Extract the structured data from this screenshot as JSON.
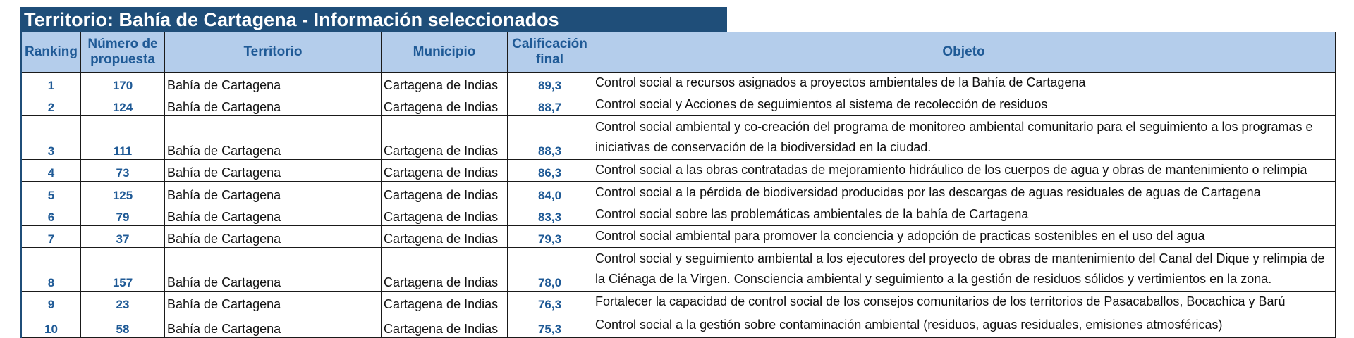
{
  "title": "Territorio: Bahía de Cartagena - Información seleccionados",
  "columns": {
    "ranking": "Ranking",
    "numero": "Número de propuesta",
    "territorio": "Territorio",
    "municipio": "Municipio",
    "calificacion": "Calificación final",
    "objeto": "Objeto"
  },
  "rows": [
    {
      "ranking": "1",
      "numero": "170",
      "territorio": "Bahía de Cartagena",
      "municipio": "Cartagena de Indias",
      "calificacion": "89,3",
      "objeto": "Control social a recursos asignados a proyectos ambientales de la Bahía de Cartagena"
    },
    {
      "ranking": "2",
      "numero": "124",
      "territorio": "Bahía de Cartagena",
      "municipio": "Cartagena de Indias",
      "calificacion": "88,7",
      "objeto": "Control  social y Acciones de seguimientos al sistema de recolección de residuos"
    },
    {
      "ranking": "3",
      "numero": "111",
      "territorio": "Bahía de Cartagena",
      "municipio": "Cartagena de Indias",
      "calificacion": "88,3",
      "objeto": "Control social ambiental y co-creación del programa de monitoreo ambiental comunitario para el seguimiento a los programas e iniciativas de conservación de la biodiversidad en la ciudad."
    },
    {
      "ranking": "4",
      "numero": "73",
      "territorio": "Bahía de Cartagena",
      "municipio": "Cartagena de Indias",
      "calificacion": "86,3",
      "objeto": "Control social a las obras contratadas de mejoramiento hidráulico de los cuerpos de agua y obras de mantenimiento o relimpia"
    },
    {
      "ranking": "5",
      "numero": "125",
      "territorio": "Bahía de Cartagena",
      "municipio": "Cartagena de Indias",
      "calificacion": "84,0",
      "objeto": "Control social a la pérdida de biodiversidad producidas por las descargas de aguas residuales de aguas de Cartagena"
    },
    {
      "ranking": "6",
      "numero": "79",
      "territorio": "Bahía de Cartagena",
      "municipio": "Cartagena de Indias",
      "calificacion": "83,3",
      "objeto": "Control social sobre las problemáticas ambientales de la bahía de Cartagena"
    },
    {
      "ranking": "7",
      "numero": "37",
      "territorio": "Bahía de Cartagena",
      "municipio": "Cartagena de Indias",
      "calificacion": "79,3",
      "objeto": "Control social ambiental para promover la conciencia y adopción de practicas sostenibles en el uso del agua"
    },
    {
      "ranking": "8",
      "numero": "157",
      "territorio": "Bahía de Cartagena",
      "municipio": "Cartagena de Indias",
      "calificacion": "78,0",
      "objeto": "Control social y seguimiento ambiental a los ejecutores del proyecto de obras de mantenimiento del Canal del Dique  y relimpia de la Ciénaga de la Virgen. Consciencia ambiental y seguimiento a la gestión de residuos sólidos y vertimientos en la zona."
    },
    {
      "ranking": "9",
      "numero": "23",
      "territorio": "Bahía de Cartagena",
      "municipio": "Cartagena de Indias",
      "calificacion": "76,3",
      "objeto": "Fortalecer la capacidad de control social de los consejos comunitarios de los territorios de Pasacaballos, Bocachica y Barú"
    },
    {
      "ranking": "10",
      "numero": "58",
      "territorio": "Bahía de Cartagena",
      "municipio": "Cartagena de Indias",
      "calificacion": "75,3",
      "objeto": "Control social a la gestión sobre contaminación ambiental (residuos, aguas residuales, emisiones atmosféricas)"
    }
  ]
}
